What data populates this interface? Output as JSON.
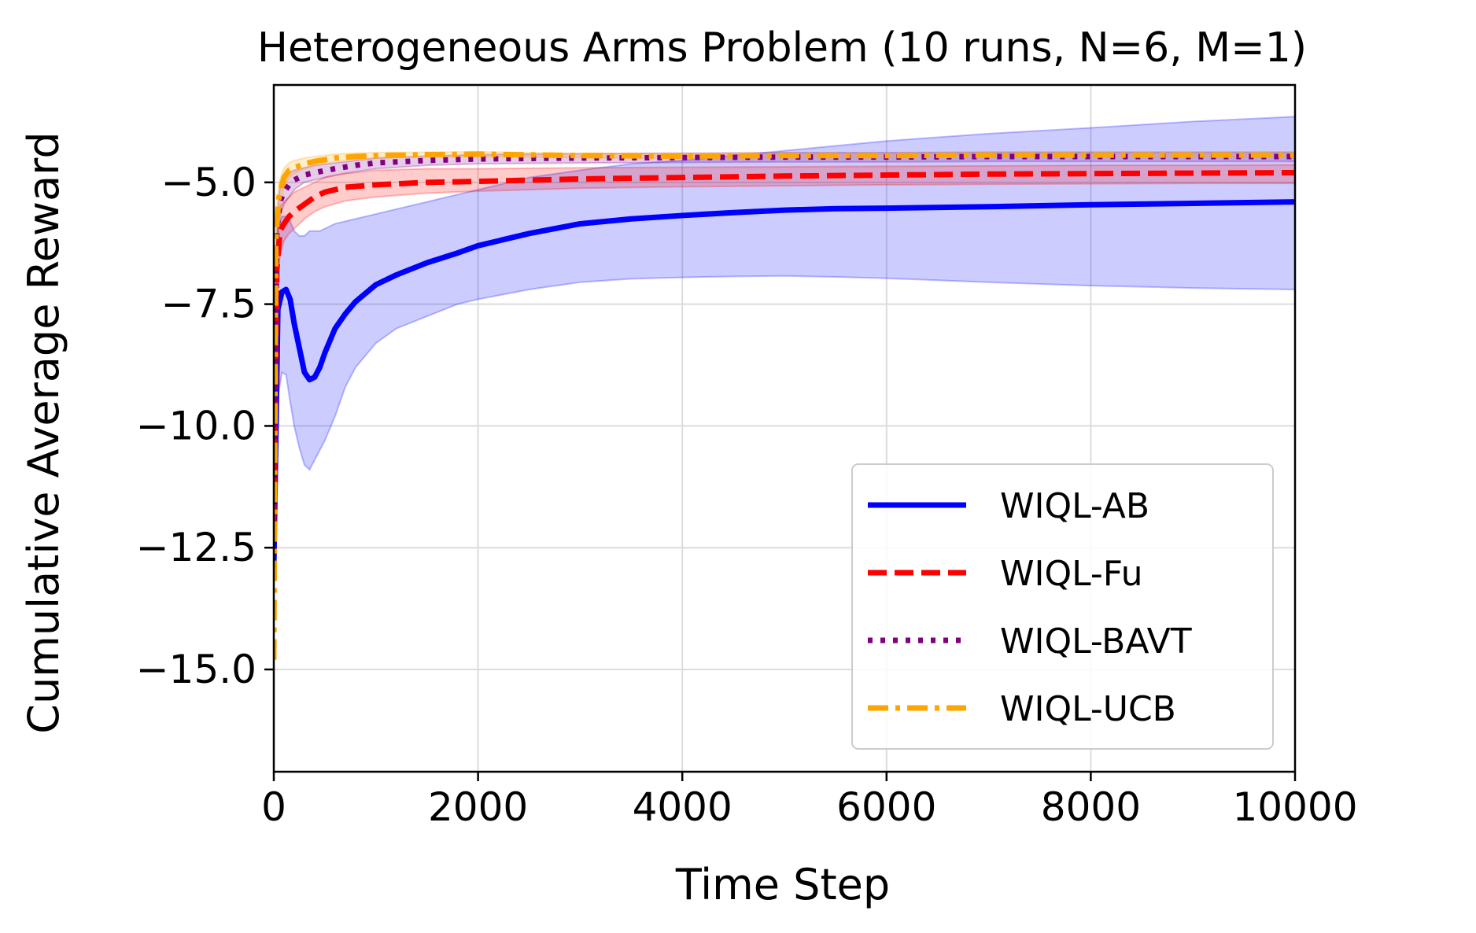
{
  "chart_data": {
    "type": "line",
    "title": "Heterogeneous Arms Problem (10 runs, N=6, M=1)",
    "xlabel": "Time Step",
    "ylabel": "Cumulative Average Reward",
    "xlim": [
      0,
      10000
    ],
    "ylim": [
      -17.1,
      -3.0
    ],
    "xticks": [
      0,
      2000,
      4000,
      6000,
      8000,
      10000
    ],
    "xtick_labels": [
      "0",
      "2000",
      "4000",
      "6000",
      "8000",
      "10000"
    ],
    "yticks": [
      -5.0,
      -7.5,
      -10.0,
      -12.5,
      -15.0
    ],
    "ytick_labels": [
      "−5.0",
      "−7.5",
      "−10.0",
      "−12.5",
      "−15.0"
    ],
    "grid": true,
    "legend_position": "lower-right",
    "series": [
      {
        "name": "WIQL-AB",
        "color": "#0000ff",
        "style": "solid",
        "x": [
          0,
          40,
          80,
          120,
          160,
          200,
          250,
          300,
          350,
          400,
          450,
          500,
          600,
          700,
          800,
          1000,
          1200,
          1500,
          1800,
          2000,
          2500,
          3000,
          3500,
          4000,
          4500,
          5000,
          5500,
          6000,
          7000,
          8000,
          9000,
          10000
        ],
        "y": [
          -12.9,
          -7.6,
          -7.25,
          -7.2,
          -7.4,
          -7.9,
          -8.4,
          -8.9,
          -9.05,
          -9.0,
          -8.8,
          -8.5,
          -8.0,
          -7.7,
          -7.45,
          -7.1,
          -6.9,
          -6.65,
          -6.45,
          -6.3,
          -6.05,
          -5.85,
          -5.75,
          -5.68,
          -5.62,
          -5.57,
          -5.54,
          -5.53,
          -5.5,
          -5.46,
          -5.43,
          -5.4
        ],
        "lower": [
          -12.9,
          -9.4,
          -8.9,
          -8.95,
          -9.5,
          -10.0,
          -10.45,
          -10.8,
          -10.9,
          -10.7,
          -10.5,
          -10.3,
          -9.8,
          -9.2,
          -8.8,
          -8.3,
          -8.0,
          -7.75,
          -7.5,
          -7.4,
          -7.2,
          -7.05,
          -6.98,
          -6.95,
          -6.93,
          -6.92,
          -6.94,
          -6.97,
          -7.05,
          -7.12,
          -7.17,
          -7.2
        ],
        "upper": [
          -12.9,
          -5.9,
          -5.7,
          -5.7,
          -5.8,
          -6.0,
          -6.1,
          -6.1,
          -6.0,
          -6.0,
          -6.0,
          -5.95,
          -5.85,
          -5.8,
          -5.75,
          -5.65,
          -5.55,
          -5.4,
          -5.25,
          -5.15,
          -4.9,
          -4.75,
          -4.62,
          -4.55,
          -4.45,
          -4.35,
          -4.25,
          -4.15,
          -4.0,
          -3.88,
          -3.75,
          -3.65
        ]
      },
      {
        "name": "WIQL-Fu",
        "color": "#ff0000",
        "style": "dashed",
        "x": [
          0,
          30,
          60,
          100,
          150,
          200,
          300,
          400,
          500,
          700,
          1000,
          1500,
          2000,
          3000,
          4000,
          5000,
          6000,
          7000,
          8000,
          9000,
          10000
        ],
        "y": [
          -12.0,
          -6.8,
          -6.0,
          -5.85,
          -5.7,
          -5.6,
          -5.45,
          -5.3,
          -5.2,
          -5.1,
          -5.05,
          -5.0,
          -4.98,
          -4.93,
          -4.9,
          -4.87,
          -4.85,
          -4.83,
          -4.82,
          -4.81,
          -4.8
        ],
        "lower": [
          -12.0,
          -7.2,
          -6.5,
          -6.2,
          -6.05,
          -5.95,
          -5.75,
          -5.6,
          -5.5,
          -5.38,
          -5.3,
          -5.22,
          -5.18,
          -5.12,
          -5.09,
          -5.07,
          -5.05,
          -5.04,
          -5.03,
          -5.02,
          -5.02
        ],
        "upper": [
          -12.0,
          -6.2,
          -5.5,
          -5.4,
          -5.3,
          -5.2,
          -5.1,
          -5.0,
          -4.9,
          -4.82,
          -4.75,
          -4.72,
          -4.72,
          -4.7,
          -4.69,
          -4.68,
          -4.67,
          -4.66,
          -4.65,
          -4.65,
          -4.64
        ]
      },
      {
        "name": "WIQL-BAVT",
        "color": "#800080",
        "style": "dotted",
        "x": [
          0,
          30,
          60,
          100,
          150,
          200,
          300,
          400,
          600,
          800,
          1000,
          1500,
          2000,
          3000,
          4000,
          5000,
          6000,
          7000,
          8000,
          9000,
          10000
        ],
        "y": [
          -12.6,
          -6.0,
          -5.4,
          -5.2,
          -5.05,
          -4.95,
          -4.85,
          -4.8,
          -4.72,
          -4.65,
          -4.6,
          -4.55,
          -4.52,
          -4.5,
          -4.49,
          -4.48,
          -4.48,
          -4.47,
          -4.47,
          -4.47,
          -4.47
        ],
        "lower": [
          -12.6,
          -6.3,
          -5.7,
          -5.45,
          -5.3,
          -5.15,
          -5.0,
          -4.95,
          -4.85,
          -4.78,
          -4.72,
          -4.65,
          -4.62,
          -4.6,
          -4.59,
          -4.58,
          -4.58,
          -4.57,
          -4.57,
          -4.57,
          -4.57
        ],
        "upper": [
          -12.6,
          -5.7,
          -5.1,
          -4.95,
          -4.8,
          -4.75,
          -4.7,
          -4.65,
          -4.6,
          -4.55,
          -4.5,
          -4.46,
          -4.43,
          -4.41,
          -4.4,
          -4.39,
          -4.39,
          -4.38,
          -4.38,
          -4.38,
          -4.38
        ]
      },
      {
        "name": "WIQL-UCB",
        "color": "#ffa500",
        "style": "dashdot",
        "x": [
          0,
          20,
          50,
          100,
          150,
          200,
          300,
          400,
          600,
          800,
          1000,
          1500,
          2000,
          3000,
          4000,
          5000,
          6000,
          7000,
          8000,
          9000,
          10000
        ],
        "y": [
          -14.8,
          -6.2,
          -5.3,
          -4.9,
          -4.75,
          -4.7,
          -4.62,
          -4.57,
          -4.5,
          -4.47,
          -4.45,
          -4.43,
          -4.42,
          -4.45,
          -4.46,
          -4.45,
          -4.45,
          -4.44,
          -4.44,
          -4.44,
          -4.44
        ],
        "lower": [
          -14.8,
          -6.6,
          -5.6,
          -5.1,
          -4.9,
          -4.82,
          -4.72,
          -4.65,
          -4.57,
          -4.53,
          -4.5,
          -4.48,
          -4.47,
          -4.49,
          -4.5,
          -4.49,
          -4.49,
          -4.48,
          -4.48,
          -4.48,
          -4.48
        ],
        "upper": [
          -14.8,
          -5.8,
          -5.0,
          -4.7,
          -4.6,
          -4.55,
          -4.5,
          -4.47,
          -4.42,
          -4.4,
          -4.39,
          -4.38,
          -4.37,
          -4.41,
          -4.42,
          -4.41,
          -4.41,
          -4.4,
          -4.4,
          -4.4,
          -4.4
        ]
      }
    ]
  }
}
